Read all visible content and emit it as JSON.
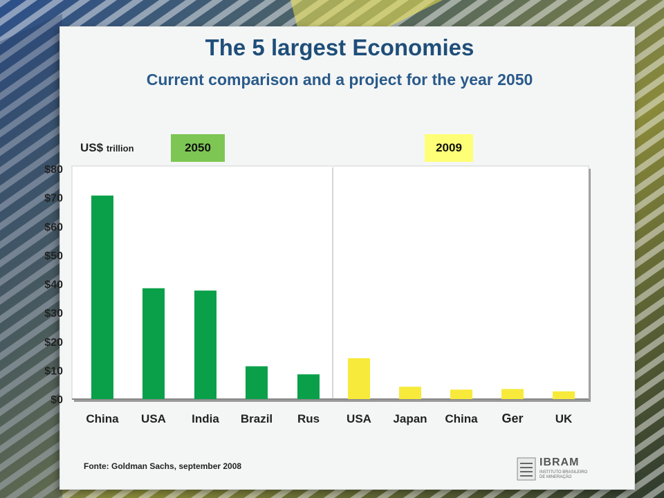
{
  "slide": {
    "title": "The 5 largest Economies",
    "subtitle": "Current comparison and a project for the year 2050",
    "unit_main": "US$",
    "unit_small": "trillion",
    "badge_2050": "2050",
    "badge_2009": "2009",
    "source": "Fonte: Goldman Sachs, september 2008",
    "logo_text": "IBRAM",
    "logo_sub": "INSTITUTO BRASILEIRO DE MINERAÇÃO"
  },
  "chart_data": {
    "type": "bar",
    "title": "The 5 largest Economies",
    "ylabel": "US$ trillion",
    "ylim": [
      0,
      80
    ],
    "yticks": [
      0,
      10,
      20,
      30,
      40,
      50,
      60,
      70,
      80
    ],
    "ytick_labels": [
      "$0",
      "$10",
      "$20",
      "$30",
      "$40",
      "$50",
      "$60",
      "$70",
      "$80"
    ],
    "grid": false,
    "groups": [
      {
        "name": "2050",
        "color": "#0aa04a",
        "categories": [
          "China",
          "USA",
          "India",
          "Brazil",
          "Rus"
        ],
        "values": [
          70.7,
          38.5,
          37.7,
          11.4,
          8.6
        ]
      },
      {
        "name": "2009",
        "color": "#f7ea3a",
        "categories": [
          "USA",
          "Japan",
          "China",
          "Ger",
          "UK"
        ],
        "values": [
          14.2,
          4.3,
          3.3,
          3.5,
          2.7
        ]
      }
    ]
  },
  "colors": {
    "title": "#1f4e79",
    "bar_2050": "#0aa04a",
    "bar_2009": "#f7ea3a",
    "badge_2050": "#7dc654",
    "badge_2009": "#ffff77"
  }
}
